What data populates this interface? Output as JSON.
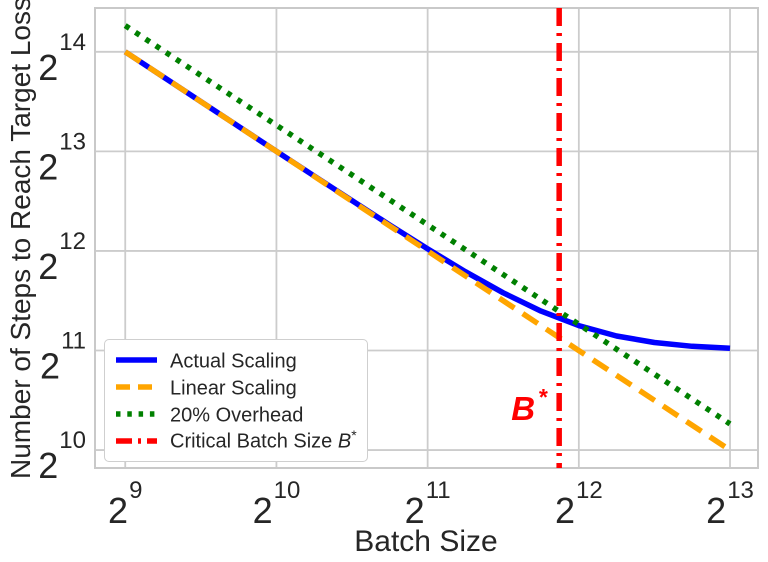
{
  "chart_data": {
    "type": "line",
    "title": "",
    "xlabel": "Batch Size",
    "ylabel": "Number of Steps to Reach Target Loss",
    "x_scale": "log2",
    "y_scale": "log2",
    "grid": true,
    "legend_position": "lower left",
    "tick_base": "2",
    "x_tick_exponents": [
      9,
      10,
      11,
      12,
      13
    ],
    "y_tick_exponents": [
      10,
      11,
      12,
      13,
      14
    ],
    "x_range_log2": [
      8.8,
      13.185
    ],
    "y_range_log2": [
      9.82,
      14.44
    ],
    "series": [
      {
        "name": "Actual Scaling",
        "color": "#0000ff",
        "style": "solid",
        "x_log2": [
          9,
          9.25,
          9.5,
          9.75,
          10,
          10.25,
          10.5,
          10.75,
          11,
          11.25,
          11.5,
          11.75,
          12,
          12.25,
          12.5,
          12.75,
          13
        ],
        "y_log2": [
          14.0,
          13.75,
          13.5,
          13.251,
          13.001,
          12.753,
          12.506,
          12.261,
          12.022,
          11.792,
          11.58,
          11.396,
          11.25,
          11.146,
          11.08,
          11.042,
          11.022
        ]
      },
      {
        "name": "Linear Scaling",
        "color": "#ffa500",
        "style": "dashed",
        "x_log2": [
          9,
          13
        ],
        "y_log2": [
          14.0,
          10.0
        ]
      },
      {
        "name": "20% Overhead",
        "color": "#008000",
        "style": "dotted",
        "x_log2": [
          9,
          13
        ],
        "y_log2": [
          14.263,
          10.263
        ]
      },
      {
        "name": "Critical Batch Size B*",
        "color": "#ff0000",
        "style": "dashdot",
        "vline_x_log2": 11.87
      }
    ],
    "annotation": {
      "text": "B",
      "sup": "*",
      "color": "#ff0000",
      "x_log2": 11.87,
      "y_log2": 10.3
    }
  },
  "legend": {
    "items": [
      {
        "label": "Actual Scaling"
      },
      {
        "label": "Linear Scaling"
      },
      {
        "label": "20% Overhead"
      },
      {
        "label": "Critical Batch Size ",
        "math_suffix": "B",
        "sup": "*"
      }
    ]
  }
}
